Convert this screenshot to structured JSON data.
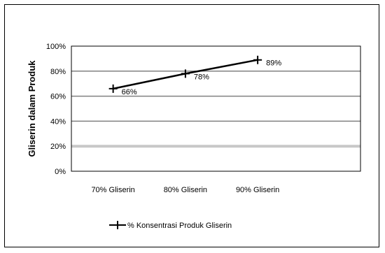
{
  "chart_data": {
    "type": "line",
    "categories": [
      "70% Gliserin",
      "80% Gliserin",
      "90% Gliserin"
    ],
    "series": [
      {
        "name": "% Konsentrasi Produk Gliserin",
        "values": [
          66,
          78,
          89
        ],
        "labels": [
          "66%",
          "78%",
          "89%"
        ],
        "color": "#000000"
      }
    ],
    "ylabel": "Gliserin dalam Produk",
    "xlabel": "",
    "ylim": [
      0,
      100
    ],
    "yticks": [
      "0%",
      "20%",
      "40%",
      "60%",
      "80%",
      "100%"
    ],
    "ytick_values": [
      0,
      20,
      40,
      60,
      80,
      100
    ],
    "grid": true,
    "highlight_gridline": 20,
    "highlight_color": "#c8c8c8",
    "gridline_color": "#808080",
    "legend_position": "bottom"
  }
}
